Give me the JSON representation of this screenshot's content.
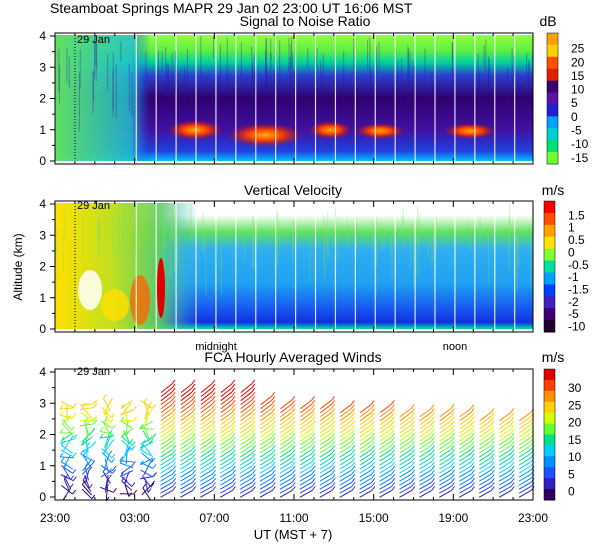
{
  "header": {
    "title": "Steamboat Springs  MAPR 29 Jan 02  23:00 UT  16:06   MST"
  },
  "date_marker": "29 Jan",
  "chart_data": [
    {
      "type": "heatmap",
      "title": "Signal to Noise Ratio",
      "unit": "dB",
      "y_ticks": [
        "0",
        "1",
        "2",
        "3",
        "4"
      ],
      "ylim": [
        0,
        4
      ],
      "colorbar": {
        "labels": [
          "25",
          "20",
          "15",
          "10",
          "5",
          "0",
          "-5",
          "-10",
          "-15"
        ],
        "colors": [
          "#ffa000",
          "#ffd000",
          "#ff5000",
          "#e02000",
          "#3a0070",
          "#5a10a0",
          "#2020d0",
          "#00a0ff",
          "#00d0d0",
          "#00e070",
          "#70ff30"
        ]
      }
    },
    {
      "type": "heatmap",
      "title": "Vertical Velocity",
      "unit": "m/s",
      "ylabel": "Altitude (km)",
      "y_ticks": [
        "0",
        "1",
        "2",
        "3",
        "4"
      ],
      "ylim": [
        0,
        4
      ],
      "x_annotations": [
        "midnight",
        "noon"
      ],
      "colorbar": {
        "labels": [
          "1.5",
          "1",
          "0.5",
          "0",
          "-0.5",
          "-1",
          "-1.5",
          "-2",
          "-5",
          "-10"
        ],
        "colors": [
          "#ff0000",
          "#ff5000",
          "#ffa000",
          "#ffe000",
          "#80ff30",
          "#00e0a0",
          "#00a0ff",
          "#0040ff",
          "#4020c0",
          "#400070",
          "#200030"
        ]
      }
    },
    {
      "type": "scatter",
      "title": "FCA Hourly Averaged Winds",
      "unit": "m/s",
      "y_ticks": [
        "0",
        "1",
        "2",
        "3",
        "4"
      ],
      "ylim": [
        0,
        4
      ],
      "x_ticks": [
        "23:00",
        "03:00",
        "07:00",
        "11:00",
        "15:00",
        "19:00",
        "23:00"
      ],
      "xlabel": "UT  (MST + 7)",
      "colorbar": {
        "labels": [
          "30",
          "25",
          "20",
          "15",
          "10",
          "5",
          "0"
        ],
        "colors": [
          "#e00000",
          "#ff4000",
          "#ff9000",
          "#ffd000",
          "#d0ff00",
          "#60ff30",
          "#00e090",
          "#00d0ff",
          "#0090ff",
          "#2050ff",
          "#3020c0",
          "#300060"
        ]
      }
    }
  ]
}
